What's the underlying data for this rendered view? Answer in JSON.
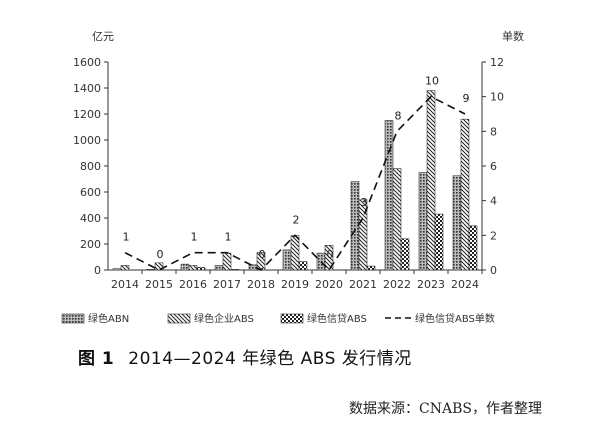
{
  "chart_data": {
    "type": "bar",
    "ylabel_left": "亿元",
    "ylabel_right": "单数",
    "ylim_left": [
      0,
      1600
    ],
    "ylim_right": [
      0,
      12
    ],
    "yticks_left": [
      0,
      200,
      400,
      600,
      800,
      1000,
      1200,
      1400,
      1600
    ],
    "yticks_right": [
      0,
      2,
      4,
      6,
      8,
      10,
      12
    ],
    "categories": [
      "2014",
      "2015",
      "2016",
      "2017",
      "2018",
      "2019",
      "2020",
      "2021",
      "2022",
      "2023",
      "2024"
    ],
    "series": [
      {
        "name": "绿色ABN",
        "axis": "left",
        "pattern": "dots",
        "values": [
          10,
          5,
          45,
          35,
          40,
          155,
          130,
          680,
          1150,
          750,
          725
        ]
      },
      {
        "name": "绿色企业ABS",
        "axis": "left",
        "pattern": "diag",
        "values": [
          35,
          55,
          35,
          130,
          135,
          265,
          190,
          540,
          780,
          1380,
          1160
        ]
      },
      {
        "name": "绿色信贷ABS",
        "axis": "left",
        "pattern": "check",
        "values": [
          0,
          0,
          20,
          5,
          0,
          65,
          0,
          30,
          240,
          430,
          340
        ]
      },
      {
        "name": "绿色信贷ABS单数",
        "axis": "right",
        "type": "line",
        "values": [
          1,
          0,
          1,
          1,
          0,
          2,
          0,
          3,
          8,
          10,
          9
        ]
      }
    ]
  },
  "caption": {
    "fig_no": "图 1",
    "title": "2014—2024 年绿色 ABS 发行情况"
  },
  "source": "数据来源：CNABS，作者整理"
}
